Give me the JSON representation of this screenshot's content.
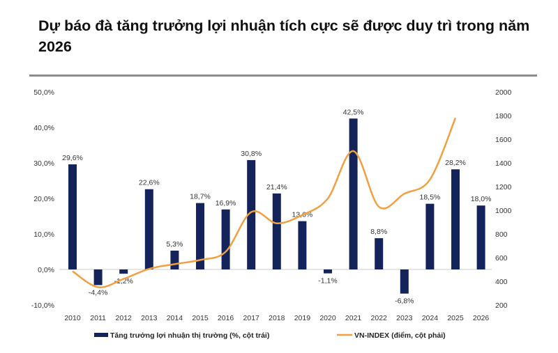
{
  "title": "Dự báo đà tăng trưởng lợi nhuận tích cực sẽ được duy trì trong năm 2026",
  "colors": {
    "bar": "#14245a",
    "line": "#f0a040",
    "rule": "#8c8c8c"
  },
  "chart_data": {
    "type": "bar+line",
    "categories": [
      "2010",
      "2011",
      "2012",
      "2013",
      "2014",
      "2015",
      "2016",
      "2017",
      "2018",
      "2019",
      "2020",
      "2021",
      "2022",
      "2023",
      "2024",
      "2025",
      "2026"
    ],
    "series": [
      {
        "name": "Tăng trưởng lợi nhuận thị trường (%, cột trái)",
        "type": "bar",
        "axis": "left",
        "values": [
          29.6,
          -4.4,
          -1.2,
          22.6,
          5.3,
          18.7,
          16.9,
          30.8,
          21.4,
          13.6,
          -1.1,
          42.5,
          8.8,
          -6.8,
          18.5,
          28.2,
          18.0
        ],
        "labels": [
          "29,6%",
          "-4,4%",
          "-1,2%",
          "22,6%",
          "5,3%",
          "18,7%",
          "16,9%",
          "30,8%",
          "21,4%",
          "13,6%",
          "-1,1%",
          "42,5%",
          "8,8%",
          "-6,8%",
          "18,5%",
          "28,2%",
          "18,0%"
        ]
      },
      {
        "name": "VN-INDEX (điểm, cột phải)",
        "type": "line",
        "axis": "right",
        "values": [
          485,
          350,
          420,
          505,
          545,
          580,
          650,
          985,
          890,
          960,
          1100,
          1500,
          1030,
          1140,
          1260,
          1780,
          null
        ]
      }
    ],
    "left_axis": {
      "range": [
        -10,
        50
      ],
      "ticks": [
        "-10,0%",
        "0,0%",
        "10,0%",
        "20,0%",
        "30,0%",
        "40,0%",
        "50,0%"
      ]
    },
    "right_axis": {
      "range": [
        200,
        2000
      ],
      "ticks": [
        "200",
        "400",
        "600",
        "800",
        "1000",
        "1200",
        "1400",
        "1600",
        "1800",
        "2000"
      ]
    },
    "legend": {
      "placement": "bottom",
      "bar_label": "Tăng trưởng lợi nhuận thị trường (%, cột trái)",
      "line_label": "VN-INDEX (điểm, cột phải)"
    }
  }
}
